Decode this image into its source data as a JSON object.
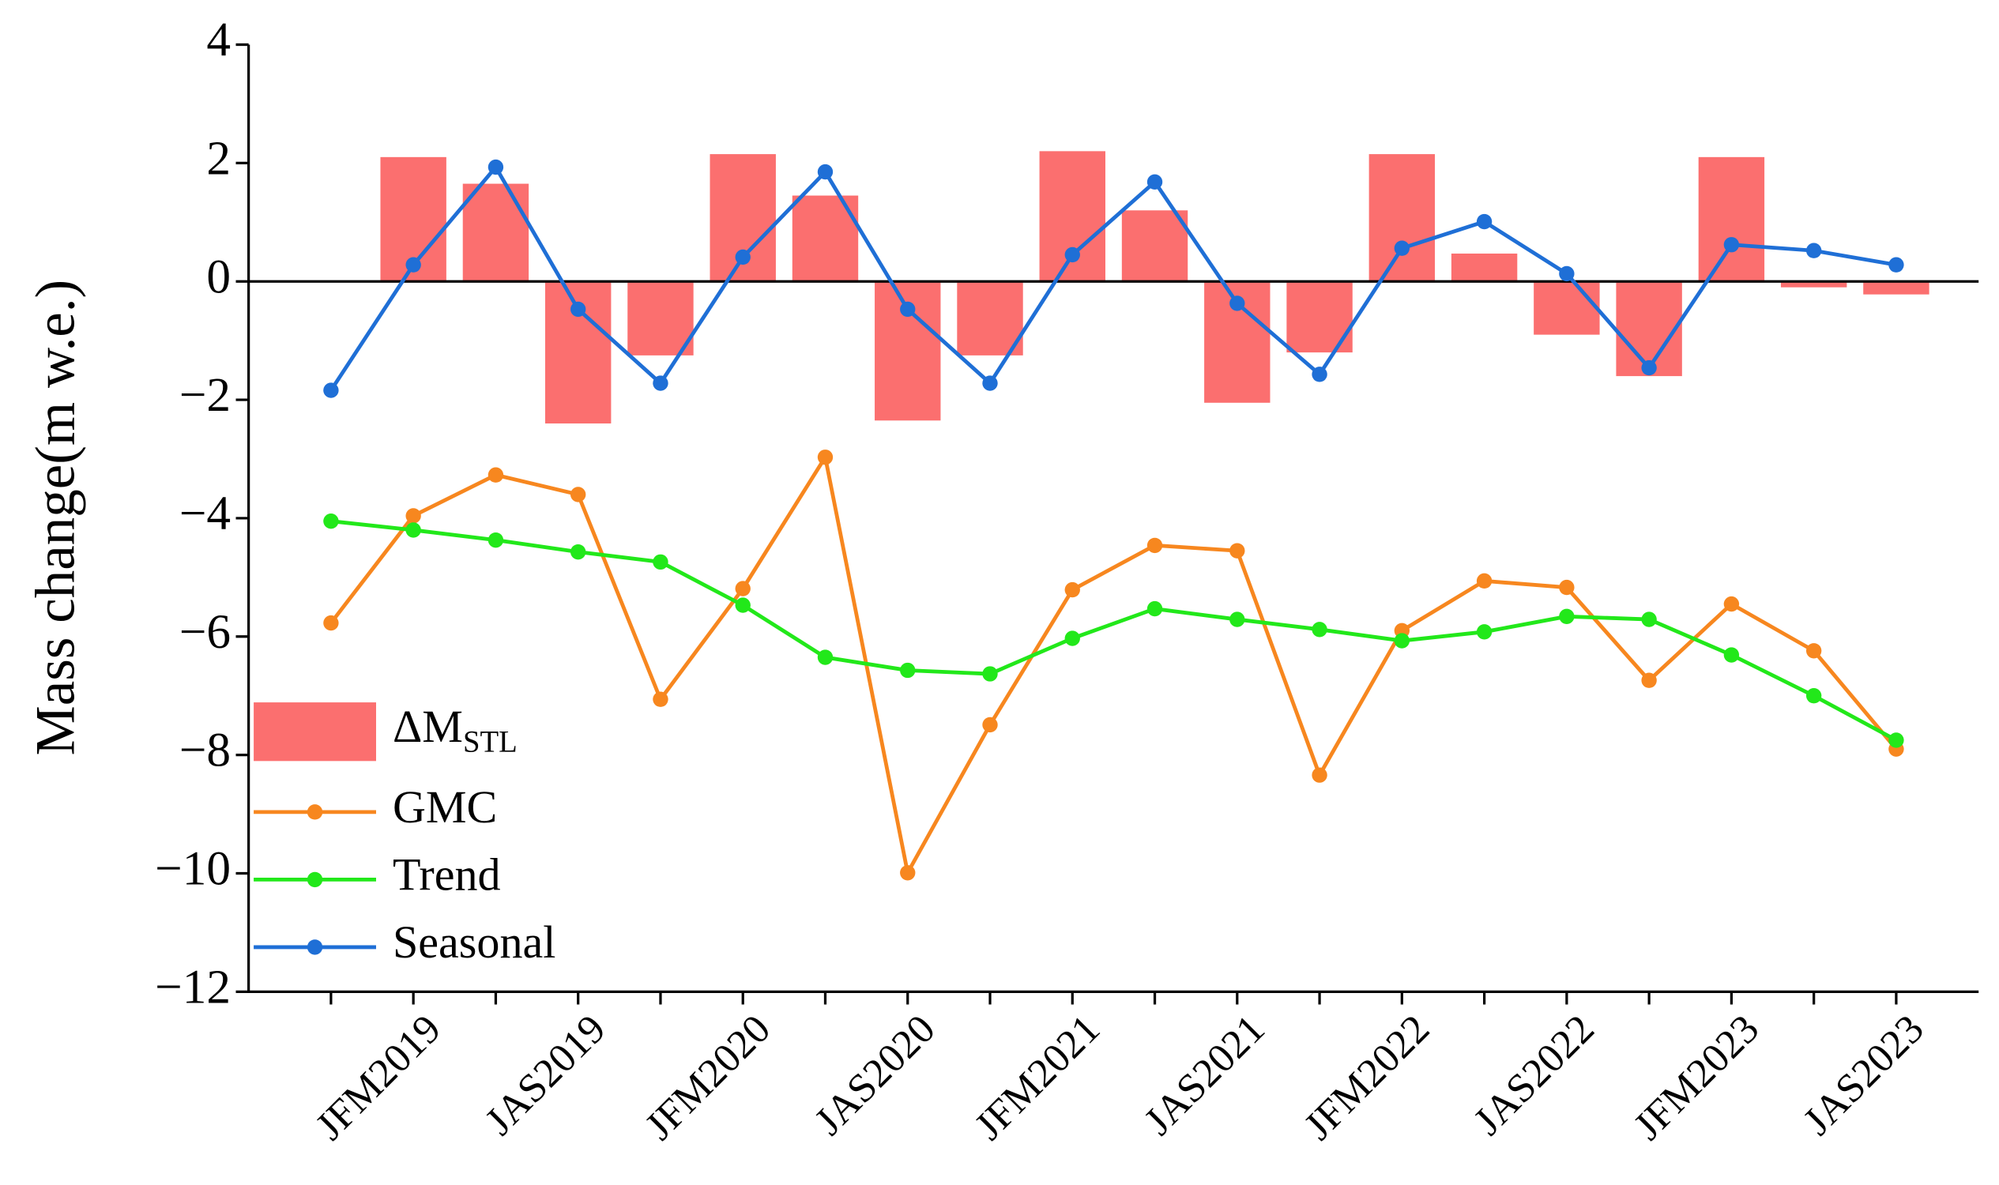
{
  "chart_data": {
    "type": "line",
    "ylabel": "Mass change(m w.e.)",
    "categories": [
      null,
      "JFM2019",
      null,
      "JAS2019",
      null,
      "JFM2020",
      null,
      "JAS2020",
      null,
      "JFM2021",
      null,
      "JAS2021",
      null,
      "JFM2022",
      null,
      "JAS2022",
      null,
      "JFM2023",
      null,
      "JAS2023"
    ],
    "ylim": [
      -12,
      4
    ],
    "yticks": [
      4,
      2,
      0,
      {
        "value": -2,
        "label": "−2"
      },
      {
        "value": -4,
        "label": "−4"
      },
      {
        "value": -6,
        "label": "−6"
      },
      {
        "value": -8,
        "label": "−8"
      },
      {
        "value": -10,
        "label": "−10"
      },
      {
        "value": -12,
        "label": "−12"
      }
    ],
    "legend": "lower left",
    "series": [
      {
        "name": "ΔM",
        "name_subscript": "STL",
        "type": "bar",
        "color": "#fb6f6f",
        "values": [
          null,
          2.1,
          1.65,
          -2.4,
          -1.25,
          2.15,
          1.45,
          -2.35,
          -1.25,
          2.2,
          1.2,
          -2.05,
          -1.2,
          2.15,
          0.47,
          -0.9,
          -1.6,
          2.1,
          -0.1,
          -0.22
        ]
      },
      {
        "name": "GMC",
        "type": "line",
        "color": "#f7871f",
        "values": [
          -5.77,
          -3.96,
          -3.27,
          -3.6,
          -7.06,
          -5.19,
          -2.97,
          -9.99,
          -7.49,
          -5.21,
          -4.46,
          -4.55,
          -8.34,
          -5.9,
          -5.06,
          -5.17,
          -6.74,
          -5.45,
          -6.24,
          -7.9
        ]
      },
      {
        "name": "Trend",
        "type": "line",
        "color": "#22e81a",
        "values": [
          -4.05,
          -4.2,
          -4.37,
          -4.57,
          -4.74,
          -5.47,
          -6.35,
          -6.57,
          -6.63,
          -6.03,
          -5.53,
          -5.71,
          -5.88,
          -6.07,
          -5.92,
          -5.66,
          -5.71,
          -6.31,
          -7.0,
          -7.75
        ]
      },
      {
        "name": "Seasonal",
        "type": "line",
        "color": "#1f6fd6",
        "values": [
          -1.84,
          0.28,
          1.93,
          -0.47,
          -1.72,
          0.41,
          1.85,
          -0.47,
          -1.72,
          0.45,
          1.68,
          -0.37,
          -1.57,
          0.56,
          1.01,
          0.13,
          -1.46,
          0.62,
          0.52,
          0.28
        ]
      }
    ]
  }
}
